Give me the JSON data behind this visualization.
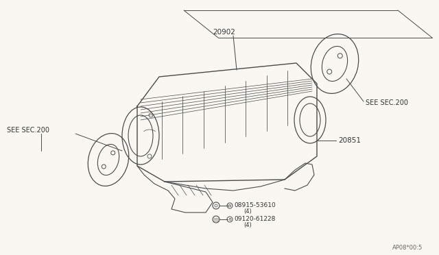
{
  "bg_color": "#F8F7F2",
  "line_color": "#4a4a4a",
  "text_color": "#333333",
  "diagram_code": "AP08*00:5",
  "label_20902": "20902",
  "label_20851": "20851",
  "washer_circle": "W",
  "washer_part": "08915-53610",
  "washer_qty": "(4)",
  "bolt_circle": "B",
  "bolt_part": "09120-61228",
  "bolt_qty": "(4)",
  "see_sec_left": "SEE SEC.200",
  "see_sec_right": "SEE SEC.200",
  "font_size_label": 7,
  "font_size_part": 6.5,
  "font_size_code": 6
}
